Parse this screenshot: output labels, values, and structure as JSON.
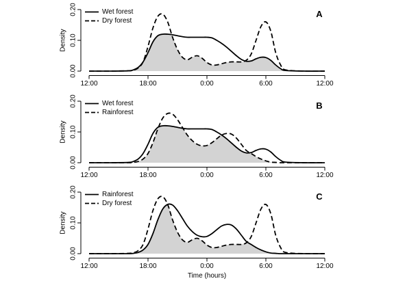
{
  "chart_data": [
    {
      "type": "line",
      "title": "A",
      "ylabel": "Density",
      "x": [
        0,
        2,
        4,
        4.5,
        5,
        5.5,
        6,
        6.5,
        7,
        7.5,
        8,
        8.5,
        9,
        9.5,
        10,
        10.5,
        11,
        11.5,
        12,
        12.5,
        13,
        13.5,
        14,
        14.5,
        15,
        15.5,
        16,
        16.5,
        17,
        17.5,
        18,
        18.5,
        19,
        19.5,
        20,
        22,
        24
      ],
      "series": [
        {
          "name": "Wet forest",
          "color": "#000000",
          "dash": "solid",
          "values": [
            0,
            0,
            0.001,
            0.004,
            0.012,
            0.03,
            0.06,
            0.095,
            0.115,
            0.12,
            0.12,
            0.118,
            0.115,
            0.112,
            0.11,
            0.11,
            0.11,
            0.11,
            0.11,
            0.108,
            0.1,
            0.09,
            0.078,
            0.064,
            0.05,
            0.038,
            0.032,
            0.033,
            0.04,
            0.045,
            0.044,
            0.035,
            0.02,
            0.008,
            0.002,
            0,
            0
          ]
        },
        {
          "name": "Dry forest",
          "color": "#000000",
          "dash": "dashed",
          "values": [
            0,
            0,
            0.001,
            0.003,
            0.01,
            0.03,
            0.08,
            0.14,
            0.178,
            0.185,
            0.16,
            0.11,
            0.07,
            0.045,
            0.037,
            0.045,
            0.05,
            0.042,
            0.028,
            0.02,
            0.02,
            0.024,
            0.028,
            0.03,
            0.03,
            0.03,
            0.035,
            0.055,
            0.1,
            0.145,
            0.16,
            0.13,
            0.06,
            0.02,
            0.004,
            0,
            0
          ]
        }
      ],
      "overlap_fill": "#d3d3d3",
      "xlim": [
        0,
        24
      ],
      "ylim": [
        -0.01,
        0.21
      ],
      "xticks": [
        {
          "value": 0,
          "label": "12:00"
        },
        {
          "value": 6,
          "label": "18:00"
        },
        {
          "value": 12,
          "label": "0:00"
        },
        {
          "value": 18,
          "label": "6:00"
        },
        {
          "value": 24,
          "label": "12:00"
        }
      ],
      "yticks": [
        {
          "value": 0,
          "label": "0.00"
        },
        {
          "value": 0.1,
          "label": "0.10"
        },
        {
          "value": 0.2,
          "label": "0.20"
        }
      ],
      "legend": "top-left"
    },
    {
      "type": "line",
      "title": "B",
      "ylabel": "Density",
      "x": [
        0,
        2,
        4,
        4.5,
        5,
        5.5,
        6,
        6.5,
        7,
        7.5,
        8,
        8.5,
        9,
        9.5,
        10,
        10.5,
        11,
        11.5,
        12,
        12.5,
        13,
        13.5,
        14,
        14.5,
        15,
        15.5,
        16,
        16.5,
        17,
        17.5,
        18,
        18.5,
        19,
        19.5,
        20,
        22,
        24
      ],
      "series": [
        {
          "name": "Wet forest",
          "color": "#000000",
          "dash": "solid",
          "values": [
            0,
            0,
            0.001,
            0.004,
            0.012,
            0.03,
            0.06,
            0.095,
            0.115,
            0.12,
            0.12,
            0.118,
            0.115,
            0.112,
            0.11,
            0.11,
            0.11,
            0.11,
            0.11,
            0.108,
            0.1,
            0.09,
            0.078,
            0.064,
            0.05,
            0.038,
            0.032,
            0.033,
            0.04,
            0.045,
            0.044,
            0.035,
            0.02,
            0.008,
            0.002,
            0,
            0
          ]
        },
        {
          "name": "Rainforest",
          "color": "#000000",
          "dash": "dashed",
          "values": [
            0,
            0,
            0,
            0.001,
            0.004,
            0.012,
            0.03,
            0.065,
            0.11,
            0.145,
            0.16,
            0.158,
            0.14,
            0.115,
            0.09,
            0.072,
            0.06,
            0.055,
            0.056,
            0.065,
            0.078,
            0.09,
            0.095,
            0.093,
            0.08,
            0.06,
            0.04,
            0.03,
            0.02,
            0.012,
            0.006,
            0.002,
            0.001,
            0,
            0,
            0,
            0
          ]
        }
      ],
      "overlap_fill": "#d3d3d3",
      "xlim": [
        0,
        24
      ],
      "ylim": [
        -0.01,
        0.21
      ],
      "xticks": [
        {
          "value": 0,
          "label": "12:00"
        },
        {
          "value": 6,
          "label": "18:00"
        },
        {
          "value": 12,
          "label": "0:00"
        },
        {
          "value": 18,
          "label": "6:00"
        },
        {
          "value": 24,
          "label": "12:00"
        }
      ],
      "yticks": [
        {
          "value": 0,
          "label": "0.00"
        },
        {
          "value": 0.1,
          "label": "0.10"
        },
        {
          "value": 0.2,
          "label": "0.20"
        }
      ],
      "legend": "top-left"
    },
    {
      "type": "line",
      "title": "C",
      "ylabel": "Density",
      "xlabel": "Time (hours)",
      "x": [
        0,
        2,
        4,
        4.5,
        5,
        5.5,
        6,
        6.5,
        7,
        7.5,
        8,
        8.5,
        9,
        9.5,
        10,
        10.5,
        11,
        11.5,
        12,
        12.5,
        13,
        13.5,
        14,
        14.5,
        15,
        15.5,
        16,
        16.5,
        17,
        17.5,
        18,
        18.5,
        19,
        19.5,
        20,
        22,
        24
      ],
      "series": [
        {
          "name": "Rainforest",
          "color": "#000000",
          "dash": "solid",
          "values": [
            0,
            0,
            0,
            0.001,
            0.004,
            0.012,
            0.03,
            0.065,
            0.11,
            0.145,
            0.16,
            0.158,
            0.14,
            0.115,
            0.09,
            0.072,
            0.06,
            0.055,
            0.056,
            0.065,
            0.078,
            0.09,
            0.095,
            0.093,
            0.08,
            0.06,
            0.04,
            0.03,
            0.02,
            0.012,
            0.006,
            0.002,
            0.001,
            0,
            0,
            0,
            0
          ]
        },
        {
          "name": "Dry forest",
          "color": "#000000",
          "dash": "dashed",
          "values": [
            0,
            0,
            0.001,
            0.003,
            0.01,
            0.03,
            0.08,
            0.14,
            0.178,
            0.185,
            0.16,
            0.11,
            0.07,
            0.045,
            0.037,
            0.045,
            0.05,
            0.042,
            0.028,
            0.02,
            0.02,
            0.024,
            0.028,
            0.03,
            0.03,
            0.03,
            0.035,
            0.055,
            0.1,
            0.145,
            0.16,
            0.13,
            0.06,
            0.02,
            0.004,
            0,
            0
          ]
        }
      ],
      "overlap_fill": "#d3d3d3",
      "xlim": [
        0,
        24
      ],
      "ylim": [
        -0.01,
        0.21
      ],
      "xticks": [
        {
          "value": 0,
          "label": "12:00"
        },
        {
          "value": 6,
          "label": "18:00"
        },
        {
          "value": 12,
          "label": "0:00"
        },
        {
          "value": 18,
          "label": "6:00"
        },
        {
          "value": 24,
          "label": "12:00"
        }
      ],
      "yticks": [
        {
          "value": 0,
          "label": "0.00"
        },
        {
          "value": 0.1,
          "label": "0.10"
        },
        {
          "value": 0.2,
          "label": "0.20"
        }
      ],
      "legend": "top-left"
    }
  ]
}
